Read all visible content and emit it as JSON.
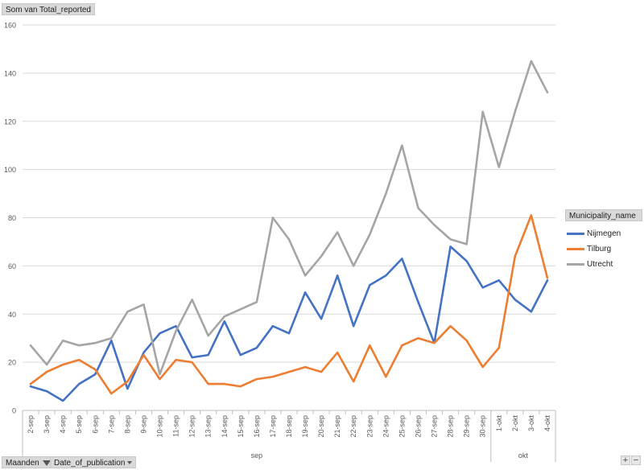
{
  "value_button": {
    "label": "Som van Total_reported"
  },
  "legend": {
    "title": "Municipality_name"
  },
  "filters": [
    {
      "label": "Maanden"
    },
    {
      "label": "Date_of_publication"
    }
  ],
  "zoom": {
    "plus": "+",
    "minus": "−"
  },
  "colors": {
    "Nijmegen": "#4472c4",
    "Tilburg": "#ed7d31",
    "Utrecht": "#a5a5a5"
  },
  "chart_data": {
    "type": "line",
    "categories": [
      "2-sep",
      "3-sep",
      "4-sep",
      "5-sep",
      "6-sep",
      "7-sep",
      "8-sep",
      "9-sep",
      "10-sep",
      "11-sep",
      "12-sep",
      "13-sep",
      "14-sep",
      "15-sep",
      "16-sep",
      "17-sep",
      "18-sep",
      "19-sep",
      "20-sep",
      "21-sep",
      "22-sep",
      "23-sep",
      "24-sep",
      "25-sep",
      "26-sep",
      "27-sep",
      "28-sep",
      "29-sep",
      "30-sep",
      "1-okt",
      "2-okt",
      "3-okt",
      "4-okt"
    ],
    "groups": [
      {
        "label": "sep",
        "count": 29
      },
      {
        "label": "okt",
        "count": 4
      }
    ],
    "series": [
      {
        "name": "Nijmegen",
        "values": [
          10,
          8,
          4,
          11,
          15,
          29,
          9,
          24,
          32,
          35,
          22,
          23,
          37,
          23,
          26,
          35,
          32,
          49,
          38,
          56,
          35,
          52,
          56,
          63,
          45,
          28,
          68,
          62,
          51,
          54,
          46,
          41,
          54
        ]
      },
      {
        "name": "Tilburg",
        "values": [
          11,
          16,
          19,
          21,
          17,
          7,
          12,
          23,
          13,
          21,
          20,
          11,
          11,
          10,
          13,
          14,
          16,
          18,
          16,
          24,
          12,
          27,
          14,
          27,
          30,
          28,
          35,
          29,
          18,
          26,
          64,
          81,
          55
        ]
      },
      {
        "name": "Utrecht",
        "values": [
          27,
          19,
          29,
          27,
          28,
          30,
          41,
          44,
          15,
          33,
          46,
          31,
          39,
          42,
          45,
          80,
          71,
          56,
          64,
          74,
          60,
          73,
          90,
          110,
          84,
          77,
          71,
          69,
          124,
          101,
          124,
          145,
          132
        ]
      }
    ],
    "ylim": [
      0,
      160
    ],
    "yticks": [
      0,
      20,
      40,
      60,
      80,
      100,
      120,
      140,
      160
    ],
    "grid": true,
    "legend_position": "right"
  }
}
